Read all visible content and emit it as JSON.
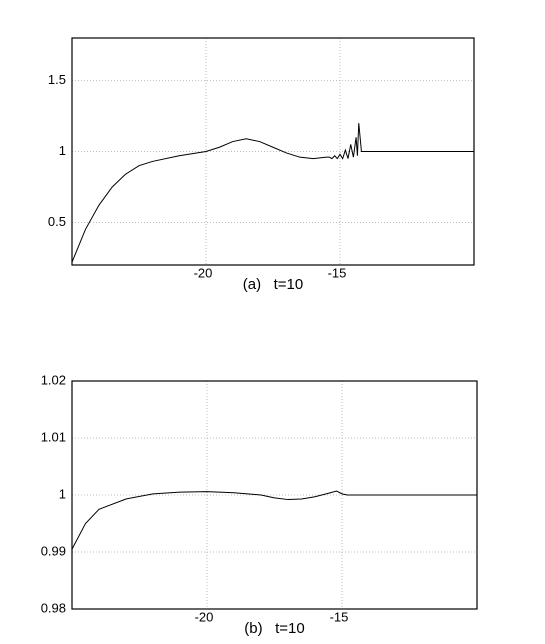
{
  "chart_data": [
    {
      "type": "line",
      "caption": "(a)   t=10",
      "x": [
        -25,
        -24.5,
        -24,
        -23.5,
        -23,
        -22.5,
        -22,
        -21,
        -20,
        -19.5,
        -19,
        -18.5,
        -18,
        -17.5,
        -17,
        -16.5,
        -16,
        -15.5,
        -15.4,
        -15.3,
        -15.2,
        -15.1,
        -15.0,
        -14.9,
        -14.8,
        -14.7,
        -14.6,
        -14.5,
        -14.4,
        -14.35,
        -14.3,
        -14.2,
        -10
      ],
      "values": [
        0.22,
        0.45,
        0.62,
        0.75,
        0.84,
        0.9,
        0.93,
        0.97,
        1.0,
        1.03,
        1.07,
        1.09,
        1.07,
        1.03,
        0.99,
        0.96,
        0.95,
        0.96,
        0.96,
        0.95,
        0.97,
        0.95,
        0.98,
        0.95,
        1.01,
        0.95,
        1.05,
        0.96,
        1.1,
        0.97,
        1.2,
        1.0,
        1.0
      ],
      "color": "#000000",
      "xlim": [
        -25,
        -10
      ],
      "xticks": [
        -20,
        -15
      ],
      "ylim": [
        0.2,
        1.8
      ],
      "yticks": [
        0.5,
        1,
        1.5
      ],
      "grid": true
    },
    {
      "type": "line",
      "caption": "(b)   t=10",
      "x": [
        -25,
        -24.5,
        -24,
        -23,
        -22,
        -21,
        -20,
        -19,
        -18,
        -17.5,
        -17,
        -16.5,
        -16,
        -15.5,
        -15.2,
        -15,
        -14.8,
        -10
      ],
      "values": [
        0.9905,
        0.995,
        0.9975,
        0.9993,
        1.0002,
        1.0005,
        1.0006,
        1.0004,
        1.0,
        0.9995,
        0.9992,
        0.9993,
        0.9997,
        1.0003,
        1.0007,
        1.0002,
        1.0,
        1.0
      ],
      "color": "#000000",
      "xlim": [
        -25,
        -10
      ],
      "xticks": [
        -20,
        -15
      ],
      "ylim": [
        0.98,
        1.02
      ],
      "yticks": [
        0.98,
        0.99,
        1,
        1.01,
        1.02
      ],
      "grid": true
    }
  ]
}
